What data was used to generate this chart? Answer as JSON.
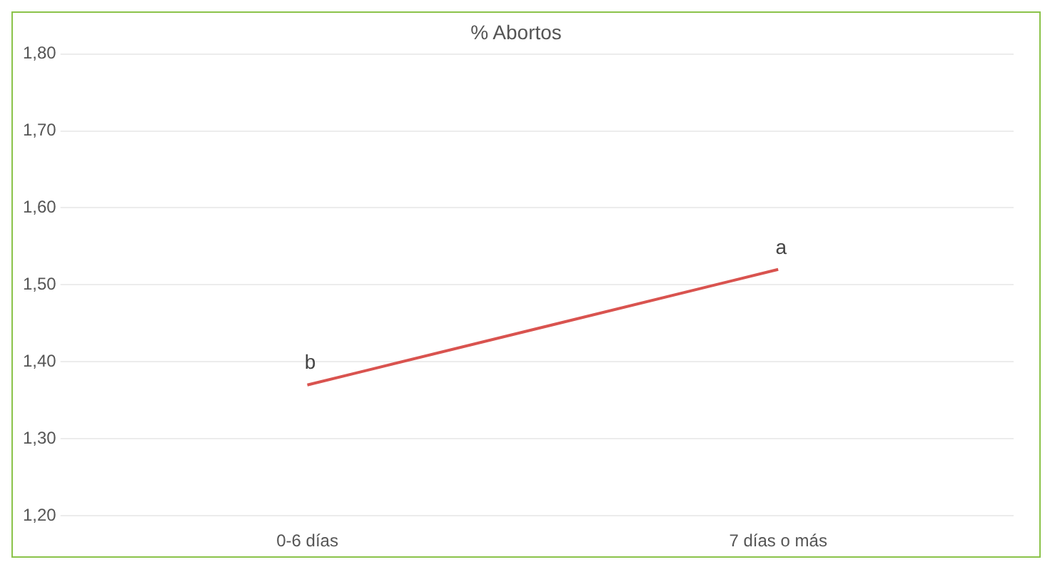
{
  "chart_data": {
    "type": "line",
    "title": "% Abortos",
    "categories": [
      "0-6 días",
      "7 días o más"
    ],
    "series": [
      {
        "color": "#d9534f",
        "values": [
          1.37,
          1.52
        ]
      }
    ],
    "ylim": [
      1.2,
      1.8
    ],
    "yticks": [
      {
        "value": 1.2,
        "label": "1,20"
      },
      {
        "value": 1.3,
        "label": "1,30"
      },
      {
        "value": 1.4,
        "label": "1,40"
      },
      {
        "value": 1.5,
        "label": "1,50"
      },
      {
        "value": 1.6,
        "label": "1,60"
      },
      {
        "value": 1.7,
        "label": "1,70"
      },
      {
        "value": 1.8,
        "label": "1,80"
      }
    ],
    "annotations": [
      {
        "text": "b",
        "x": "0-6 días",
        "y": 1.37
      },
      {
        "text": "a",
        "x": "7 días o más",
        "y": 1.52
      }
    ],
    "grid": "y",
    "legend": false,
    "marker": "none",
    "line_style": "solid"
  }
}
